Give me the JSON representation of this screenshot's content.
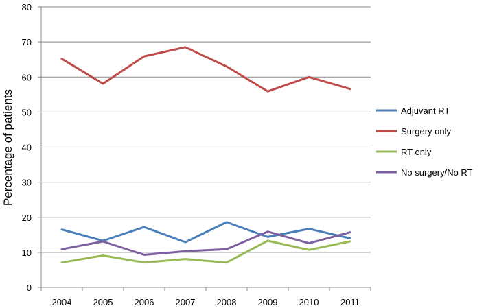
{
  "chart_data": {
    "type": "line",
    "ylabel": "Percentage of patients",
    "xlabel": "",
    "title": "",
    "ylim": [
      0,
      80
    ],
    "yticks": [
      "0",
      "10",
      "20",
      "30",
      "40",
      "50",
      "60",
      "70",
      "80"
    ],
    "categories": [
      "2004",
      "2005",
      "2006",
      "2007",
      "2008",
      "2009",
      "2010",
      "2011"
    ],
    "grid": "horizontal",
    "legend_position": "right",
    "series": [
      {
        "name": "Adjuvant RT",
        "color": "#4a7ebb",
        "values": [
          16.5,
          13.3,
          17.2,
          12.9,
          18.6,
          14.4,
          16.7,
          14.0
        ]
      },
      {
        "name": "Surgery only",
        "color": "#be4b48",
        "values": [
          65.2,
          58.1,
          65.9,
          68.5,
          63.0,
          55.9,
          60.0,
          56.6
        ]
      },
      {
        "name": "RT only",
        "color": "#98b954",
        "values": [
          7.1,
          9.1,
          7.1,
          8.1,
          7.1,
          13.3,
          10.7,
          13.1
        ]
      },
      {
        "name": "No surgery/No RT",
        "color": "#7d60a0",
        "values": [
          10.9,
          13.1,
          9.3,
          10.3,
          10.9,
          15.9,
          12.6,
          15.7
        ]
      }
    ]
  }
}
